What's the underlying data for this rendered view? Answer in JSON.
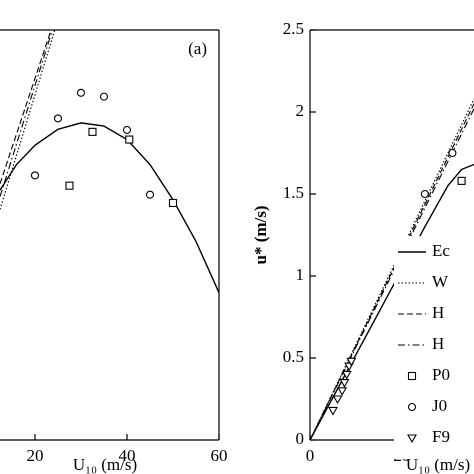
{
  "chart_data": [
    {
      "type": "line",
      "panel_label": "(a)",
      "x_label": "U₁₀ (m/s)",
      "xlim": [
        12.4,
        60
      ],
      "xticks": [
        20,
        40,
        60
      ],
      "ylim": [
        0,
        6.4
      ],
      "series": [
        {
          "style": "solid",
          "color": "#000000",
          "x": [
            12.4,
            16,
            20,
            25,
            30,
            35,
            40,
            45,
            50,
            55,
            60
          ],
          "values": [
            3.9,
            4.3,
            4.6,
            4.85,
            4.95,
            4.9,
            4.69,
            4.3,
            3.75,
            3.1,
            2.3
          ]
        },
        {
          "style": "dashed",
          "color": "#000000",
          "x": [
            12.4,
            23.5
          ],
          "values": [
            4.0,
            6.4
          ]
        },
        {
          "style": "dotted",
          "color": "#000000",
          "x": [
            12.4,
            24.3
          ],
          "values": [
            3.6,
            6.4
          ]
        },
        {
          "style": "dashdot",
          "color": "#000000",
          "x": [
            12.4,
            23.8
          ],
          "values": [
            3.8,
            6.4
          ]
        },
        {
          "marker": "circle",
          "color": "#000000",
          "x": [
            20,
            25,
            30,
            35,
            40,
            45
          ],
          "values": [
            4.13,
            5.02,
            5.42,
            5.36,
            4.84,
            3.83
          ]
        },
        {
          "marker": "square",
          "color": "#000000",
          "x": [
            27.5,
            32.5,
            40.5,
            50
          ],
          "values": [
            3.97,
            4.81,
            4.69,
            3.7
          ]
        }
      ]
    },
    {
      "type": "line",
      "x_label": "U₁₀ (m/s)",
      "y_label": "u* (m/s)",
      "xlim": [
        0,
        35.7
      ],
      "xticks": [
        0,
        20
      ],
      "ylim": [
        0,
        2.5
      ],
      "yticks": [
        0,
        0.5,
        1,
        1.5,
        2,
        2.5
      ],
      "series": [
        {
          "name": "Ec",
          "style": "solid",
          "color": "#000000",
          "x": [
            0,
            10,
            20,
            25,
            30,
            33,
            35.7
          ],
          "values": [
            0,
            0.52,
            1.04,
            1.3,
            1.55,
            1.65,
            1.68
          ]
        },
        {
          "name": "W",
          "style": "dotted",
          "color": "#000000",
          "x": [
            0,
            35.7
          ],
          "values": [
            0,
            2.08
          ]
        },
        {
          "name": "H",
          "style": "dashed",
          "color": "#000000",
          "x": [
            0,
            35.7
          ],
          "values": [
            0,
            2.05
          ]
        },
        {
          "name": "H",
          "style": "dashdot",
          "color": "#000000",
          "x": [
            0,
            35.7
          ],
          "values": [
            0,
            2.02
          ]
        },
        {
          "name": "P0",
          "marker": "square",
          "color": "#000000",
          "x": [
            27.5,
            33
          ],
          "values": [
            1.17,
            1.58
          ]
        },
        {
          "name": "J0",
          "marker": "circle",
          "color": "#000000",
          "x": [
            20,
            25,
            31
          ],
          "values": [
            1.05,
            1.5,
            1.75
          ]
        },
        {
          "name": "F9",
          "marker": "triangle",
          "color": "#000000",
          "x": [
            5,
            6,
            7,
            7.5,
            8,
            8.5,
            9
          ],
          "values": [
            0.18,
            0.25,
            0.3,
            0.35,
            0.4,
            0.45,
            0.48
          ]
        }
      ]
    }
  ]
}
